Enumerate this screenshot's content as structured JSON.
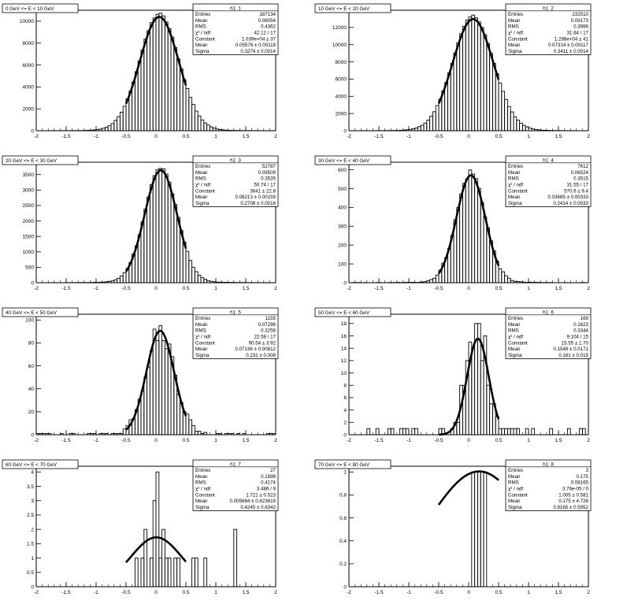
{
  "chart_data": [
    {
      "type": "histogram",
      "title": "0 GeV <= E < 10 GeV",
      "xlim": [
        -2,
        2
      ],
      "ylim": [
        0,
        11000
      ],
      "x_ticks": [
        "-2",
        "-1.5",
        "-1",
        "-0.5",
        "0",
        "0.5",
        "1",
        "1.5",
        "2"
      ],
      "y_ticks": [
        0,
        2000,
        4000,
        6000,
        8000,
        10000
      ],
      "fit": {
        "type": "gaus",
        "constant": 10390,
        "mean": 0.05576,
        "sigma": 0.3274,
        "range": [
          -0.5,
          0.5
        ]
      },
      "stats": {
        "name": "h1_1",
        "rows": [
          {
            "label": "Entries",
            "value": "187134"
          },
          {
            "label": "Mean",
            "value": "0.08054"
          },
          {
            "label": "RMS",
            "value": "0.4362"
          },
          {
            "label": "χ² / ndf",
            "value": "42.12 / 17"
          },
          {
            "label": "Constant",
            "value": "1.039e+04 ± 37"
          },
          {
            "label": "Mean",
            "value": "0.05576 ± 0.00118"
          },
          {
            "label": "Sigma",
            "value": "0.3274 ± 0.0014"
          }
        ]
      }
    },
    {
      "type": "histogram",
      "title": "10 GeV <= E < 20 GeV",
      "xlim": [
        -2,
        2
      ],
      "ylim": [
        0,
        14000
      ],
      "x_ticks": [
        "-2",
        "-1.5",
        "-1",
        "-0.5",
        "0",
        "0.5",
        "1",
        "1.5",
        "2"
      ],
      "y_ticks": [
        0,
        2000,
        4000,
        6000,
        8000,
        10000,
        12000
      ],
      "fit": {
        "type": "gaus",
        "constant": 12980,
        "mean": 0.07314,
        "sigma": 0.3411,
        "range": [
          -0.5,
          0.5
        ]
      },
      "stats": {
        "name": "h1_2",
        "rows": [
          {
            "label": "Entries",
            "value": "232510"
          },
          {
            "label": "Mean",
            "value": "0.09173"
          },
          {
            "label": "RMS",
            "value": "0.3986"
          },
          {
            "label": "χ² / ndf",
            "value": "31.64 / 17"
          },
          {
            "label": "Constant",
            "value": "1.298e+04 ± 41"
          },
          {
            "label": "Mean",
            "value": "0.07314 ± 0.00117"
          },
          {
            "label": "Sigma",
            "value": "0.3411 ± 0.0014"
          }
        ]
      }
    },
    {
      "type": "histogram",
      "title": "20 GeV <= E < 30 GeV",
      "xlim": [
        -2,
        2
      ],
      "ylim": [
        0,
        3900
      ],
      "x_ticks": [
        "-2",
        "-1.5",
        "-1",
        "-0.5",
        "0",
        "0.5",
        "1",
        "1.5",
        "2"
      ],
      "y_ticks": [
        0,
        500,
        1000,
        1500,
        2000,
        2500,
        3000,
        3500
      ],
      "fit": {
        "type": "gaus",
        "constant": 3641,
        "mean": 0.08213,
        "sigma": 0.2708,
        "range": [
          -0.5,
          0.5
        ]
      },
      "stats": {
        "name": "h1_3",
        "rows": [
          {
            "label": "Entries",
            "value": "52787"
          },
          {
            "label": "Mean",
            "value": "0.09509"
          },
          {
            "label": "RMS",
            "value": "0.3535"
          },
          {
            "label": "χ² / ndf",
            "value": "50.74 / 17"
          },
          {
            "label": "Constant",
            "value": "3641 ± 22.8"
          },
          {
            "label": "Mean",
            "value": "0.08213 ± 0.00159"
          },
          {
            "label": "Sigma",
            "value": "0.2708 ± 0.0016"
          }
        ]
      }
    },
    {
      "type": "histogram",
      "title": "30 GeV <= E < 40 GeV",
      "xlim": [
        -2,
        2
      ],
      "ylim": [
        0,
        640
      ],
      "x_ticks": [
        "-2",
        "-1.5",
        "-1",
        "-0.5",
        "0",
        "0.5",
        "1",
        "1.5",
        "2"
      ],
      "y_ticks": [
        0,
        100,
        200,
        300,
        400,
        500,
        600
      ],
      "fit": {
        "type": "gaus",
        "constant": 570.6,
        "mean": 0.03685,
        "sigma": 0.2414,
        "range": [
          -0.5,
          0.5
        ]
      },
      "stats": {
        "name": "h1_4",
        "rows": [
          {
            "label": "Entries",
            "value": "7612"
          },
          {
            "label": "Mean",
            "value": "0.06524"
          },
          {
            "label": "RMS",
            "value": "0.3515"
          },
          {
            "label": "χ² / ndf",
            "value": "31.55 / 17"
          },
          {
            "label": "Constant",
            "value": "570.6 ± 9.4"
          },
          {
            "label": "Mean",
            "value": "0.03685 ± 0.00333"
          },
          {
            "label": "Sigma",
            "value": "0.2414 ± 0.0033"
          }
        ]
      }
    },
    {
      "type": "histogram",
      "title": "40 GeV <= E < 50 GeV",
      "xlim": [
        -2,
        2
      ],
      "ylim": [
        0,
        105
      ],
      "x_ticks": [
        "-2",
        "-1.5",
        "-1",
        "-0.5",
        "0",
        "0.5",
        "1",
        "1.5",
        "2"
      ],
      "y_ticks": [
        0,
        20,
        40,
        60,
        80,
        100
      ],
      "fit": {
        "type": "gaus",
        "constant": 90.54,
        "mean": 0.07136,
        "sigma": 0.231,
        "range": [
          -0.5,
          0.5
        ]
      },
      "stats": {
        "name": "h1_5",
        "rows": [
          {
            "label": "Entries",
            "value": "1155"
          },
          {
            "label": "Mean",
            "value": "0.07296"
          },
          {
            "label": "RMS",
            "value": "0.3256"
          },
          {
            "label": "χ² / ndf",
            "value": "22.58 / 17"
          },
          {
            "label": "Constant",
            "value": "90.54 ± 3.92"
          },
          {
            "label": "Mean",
            "value": "0.07136 ± 0.00812"
          },
          {
            "label": "Sigma",
            "value": "0.231 ± 0.008"
          }
        ]
      }
    },
    {
      "type": "histogram",
      "title": "50 GeV <= E < 60 GeV",
      "xlim": [
        -2,
        2
      ],
      "ylim": [
        0,
        19.5
      ],
      "x_ticks": [
        "-2",
        "-1.5",
        "-1",
        "-0.5",
        "0",
        "0.5",
        "1",
        "1.5",
        "2"
      ],
      "y_ticks": [
        0,
        2,
        4,
        6,
        8,
        10,
        12,
        14,
        16,
        18
      ],
      "fit": {
        "type": "gaus",
        "constant": 15.55,
        "mean": 0.1548,
        "sigma": 0.181,
        "range": [
          -0.5,
          0.5
        ]
      },
      "stats": {
        "name": "h1_6",
        "rows": [
          {
            "label": "Entries",
            "value": "169"
          },
          {
            "label": "Mean",
            "value": "0.1623"
          },
          {
            "label": "RMS",
            "value": "0.3344"
          },
          {
            "label": "χ² / ndf",
            "value": "9.104 / 15"
          },
          {
            "label": "Constant",
            "value": "15.55 ± 1.70"
          },
          {
            "label": "Mean",
            "value": "0.1548 ± 0.0171"
          },
          {
            "label": "Sigma",
            "value": "0.181 ± 0.015"
          }
        ]
      }
    },
    {
      "type": "histogram",
      "title": "60 GeV <= E < 70 GeV",
      "xlim": [
        -2,
        2
      ],
      "ylim": [
        0,
        4.2
      ],
      "x_ticks": [
        "-2",
        "-1.5",
        "-1",
        "-0.5",
        "0",
        "0.5",
        "1",
        "1.5",
        "2"
      ],
      "y_ticks": [
        0,
        0.5,
        1,
        1.5,
        2,
        2.5,
        3,
        3.5,
        4
      ],
      "fit": {
        "type": "gaus",
        "constant": 1.721,
        "mean": 0.005684,
        "sigma": 0.4245,
        "range": [
          -0.5,
          0.5
        ]
      },
      "stats": {
        "name": "h1_7",
        "rows": [
          {
            "label": "Entries",
            "value": "27"
          },
          {
            "label": "Mean",
            "value": "0.1898"
          },
          {
            "label": "RMS",
            "value": "0.4174"
          },
          {
            "label": "χ² / ndf",
            "value": "3.486 / 9"
          },
          {
            "label": "Constant",
            "value": "1.721 ± 0.523"
          },
          {
            "label": "Mean",
            "value": "0.005684 ± 0.623619"
          },
          {
            "label": "Sigma",
            "value": "0.4245 ± 0.6342"
          }
        ]
      }
    },
    {
      "type": "histogram",
      "title": "70 GeV <= E < 80 GeV",
      "xlim": [
        -2,
        2
      ],
      "ylim": [
        0,
        1.05
      ],
      "x_ticks": [
        "-2",
        "-1.5",
        "-1",
        "-0.5",
        "0",
        "0.5",
        "1",
        "1.5",
        "2"
      ],
      "y_ticks": [
        0,
        0.2,
        0.4,
        0.6,
        0.8,
        1
      ],
      "fit": {
        "type": "gaus",
        "constant": 1.005,
        "mean": 0.175,
        "sigma": 0.8165,
        "range": [
          -0.5,
          0.5
        ]
      },
      "stats": {
        "name": "h1_8",
        "rows": [
          {
            "label": "Entries",
            "value": "3"
          },
          {
            "label": "Mean",
            "value": "0.175"
          },
          {
            "label": "RMS",
            "value": "0.08165"
          },
          {
            "label": "χ² / ndf",
            "value": "3.76e-05 / 0"
          },
          {
            "label": "Constant",
            "value": "1.005 ± 0.581"
          },
          {
            "label": "Mean",
            "value": "0.175 ± 4.726"
          },
          {
            "label": "Sigma",
            "value": "0.8165 ± 0.5952"
          }
        ]
      }
    }
  ]
}
